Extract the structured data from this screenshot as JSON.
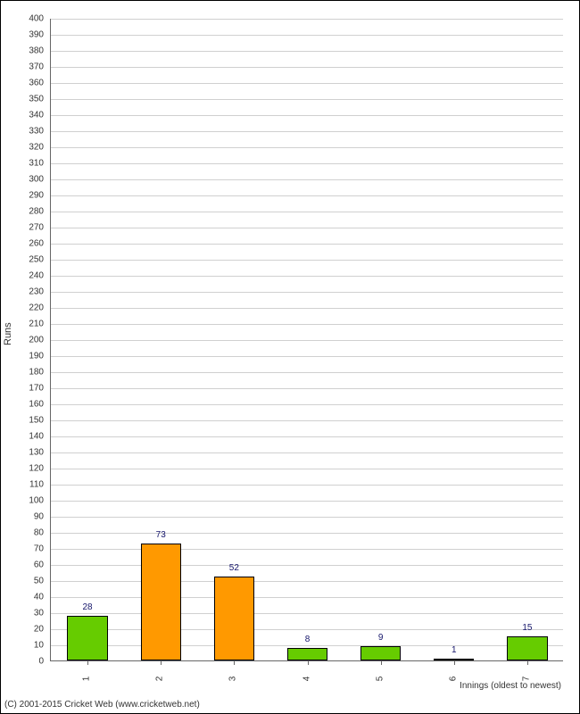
{
  "chart": {
    "type": "bar",
    "yaxis_title": "Runs",
    "xaxis_title": "Innings (oldest to newest)",
    "ylim": [
      0,
      400
    ],
    "ytick_step": 10,
    "grid_color": "#d0d0d0",
    "border_color": "#666666",
    "background_color": "#ffffff",
    "bar_border_color": "#000000",
    "label_color": "#16166b",
    "tick_color": "#333333",
    "bar_width_ratio": 0.55,
    "colors": {
      "green": "#66cc00",
      "orange": "#ff9900"
    },
    "categories": [
      "1",
      "2",
      "3",
      "4",
      "5",
      "6",
      "7"
    ],
    "values": [
      28,
      73,
      52,
      8,
      9,
      1,
      15
    ],
    "bar_colors": [
      "#66cc00",
      "#ff9900",
      "#ff9900",
      "#66cc00",
      "#66cc00",
      "#66cc00",
      "#66cc00"
    ]
  },
  "copyright": "(C) 2001-2015 Cricket Web (www.cricketweb.net)"
}
